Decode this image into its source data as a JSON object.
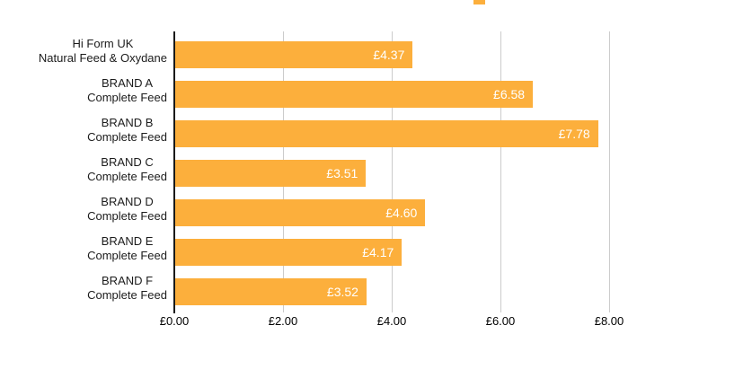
{
  "legend": {
    "swatch_color": "#FCAF3C"
  },
  "chart_data": {
    "type": "bar",
    "orientation": "horizontal",
    "title": "",
    "xlabel": "",
    "ylabel": "",
    "categories": [
      [
        "Hi Form UK",
        "Natural Feed & Oxydane"
      ],
      [
        "BRAND A",
        "Complete Feed"
      ],
      [
        "BRAND B",
        "Complete Feed"
      ],
      [
        "BRAND C",
        "Complete Feed"
      ],
      [
        "BRAND D",
        "Complete Feed"
      ],
      [
        "BRAND E",
        "Complete Feed"
      ],
      [
        "BRAND F",
        "Complete Feed"
      ]
    ],
    "values": [
      4.37,
      6.58,
      7.78,
      3.51,
      4.6,
      4.17,
      3.52
    ],
    "value_labels": [
      "£4.37",
      "£6.58",
      "£7.78",
      "£3.51",
      "£4.60",
      "£4.17",
      "£3.52"
    ],
    "x_ticks": [
      {
        "label": "£0.00",
        "value": 0
      },
      {
        "label": "£2.00",
        "value": 2
      },
      {
        "label": "£4.00",
        "value": 4
      },
      {
        "label": "£6.00",
        "value": 6
      },
      {
        "label": "£8.00",
        "value": 8
      }
    ],
    "xlim": [
      0,
      9
    ],
    "grid": true,
    "legend_position": "top-cropped",
    "bar_color": "#FCAF3C",
    "value_label_color": "#FFFFFF",
    "axis_color": "#1A1A1A",
    "gridline_color": "#CCCCCC",
    "category_label_color": "#1C1C1C"
  }
}
